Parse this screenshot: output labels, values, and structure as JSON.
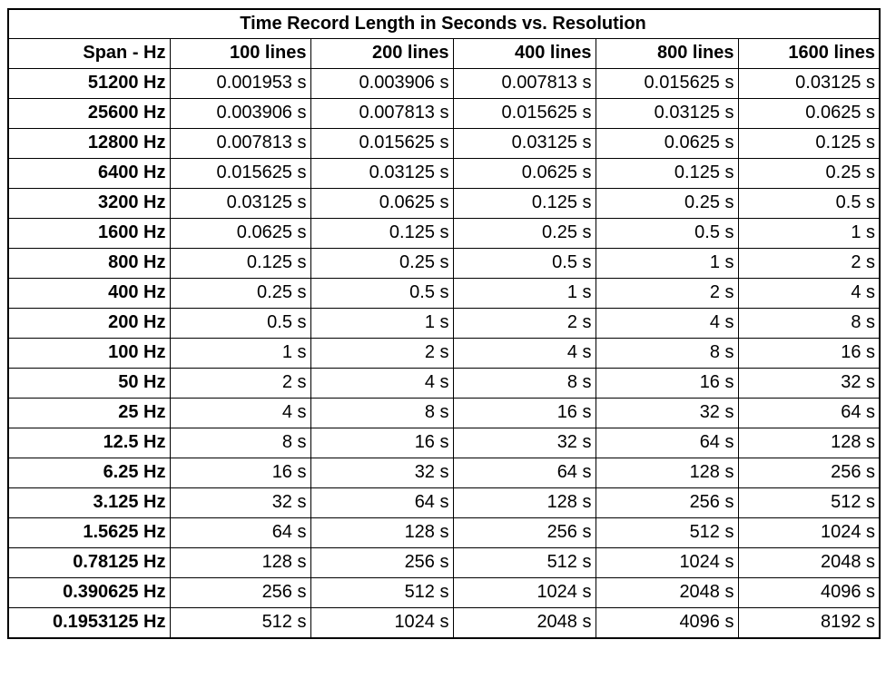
{
  "title": "Time Record Length in Seconds vs. Resolution",
  "header": [
    "Span - Hz",
    "100 lines",
    "200 lines",
    "400 lines",
    "800 lines",
    "1600 lines"
  ],
  "rows": [
    [
      "51200 Hz",
      "0.001953 s",
      "0.003906 s",
      "0.007813 s",
      "0.015625 s",
      "0.03125 s"
    ],
    [
      "25600 Hz",
      "0.003906 s",
      "0.007813 s",
      "0.015625 s",
      "0.03125 s",
      "0.0625 s"
    ],
    [
      "12800 Hz",
      "0.007813 s",
      "0.015625 s",
      "0.03125 s",
      "0.0625 s",
      "0.125 s"
    ],
    [
      "6400 Hz",
      "0.015625 s",
      "0.03125 s",
      "0.0625 s",
      "0.125 s",
      "0.25 s"
    ],
    [
      "3200 Hz",
      "0.03125 s",
      "0.0625 s",
      "0.125 s",
      "0.25 s",
      "0.5 s"
    ],
    [
      "1600 Hz",
      "0.0625 s",
      "0.125 s",
      "0.25 s",
      "0.5 s",
      "1 s"
    ],
    [
      "800 Hz",
      "0.125 s",
      "0.25 s",
      "0.5 s",
      "1 s",
      "2 s"
    ],
    [
      "400 Hz",
      "0.25 s",
      "0.5 s",
      "1 s",
      "2 s",
      "4 s"
    ],
    [
      "200 Hz",
      "0.5 s",
      "1 s",
      "2 s",
      "4 s",
      "8 s"
    ],
    [
      "100 Hz",
      "1 s",
      "2 s",
      "4 s",
      "8 s",
      "16 s"
    ],
    [
      "50 Hz",
      "2 s",
      "4 s",
      "8 s",
      "16 s",
      "32 s"
    ],
    [
      "25 Hz",
      "4 s",
      "8 s",
      "16 s",
      "32 s",
      "64 s"
    ],
    [
      "12.5 Hz",
      "8 s",
      "16 s",
      "32 s",
      "64 s",
      "128 s"
    ],
    [
      "6.25 Hz",
      "16 s",
      "32 s",
      "64 s",
      "128 s",
      "256 s"
    ],
    [
      "3.125 Hz",
      "32 s",
      "64 s",
      "128 s",
      "256 s",
      "512 s"
    ],
    [
      "1.5625 Hz",
      "64 s",
      "128 s",
      "256 s",
      "512 s",
      "1024 s"
    ],
    [
      "0.78125 Hz",
      "128 s",
      "256 s",
      "512 s",
      "1024 s",
      "2048 s"
    ],
    [
      "0.390625 Hz",
      "256 s",
      "512 s",
      "1024 s",
      "2048 s",
      "4096 s"
    ],
    [
      "0.1953125 Hz",
      "512 s",
      "1024 s",
      "2048 s",
      "4096 s",
      "8192 s"
    ]
  ]
}
